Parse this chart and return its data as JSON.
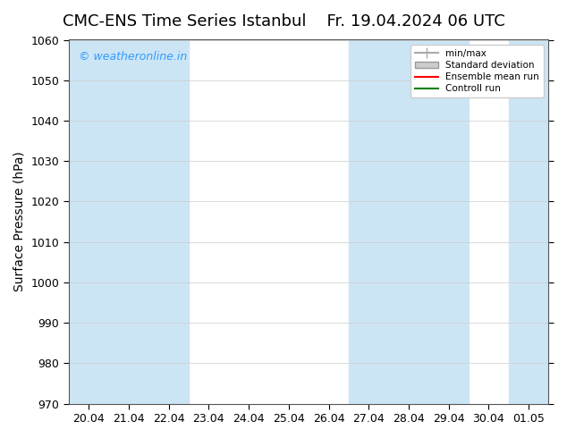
{
  "title_left": "CMC-ENS Time Series Istanbul",
  "title_right": "Fr. 19.04.2024 06 UTC",
  "ylabel": "Surface Pressure (hPa)",
  "ylim": [
    970,
    1060
  ],
  "yticks": [
    970,
    980,
    990,
    1000,
    1010,
    1020,
    1030,
    1040,
    1050,
    1060
  ],
  "xtick_labels": [
    "20.04",
    "21.04",
    "22.04",
    "23.04",
    "24.04",
    "25.04",
    "26.04",
    "27.04",
    "28.04",
    "29.04",
    "30.04",
    "01.05"
  ],
  "x_positions": [
    0,
    1,
    2,
    3,
    4,
    5,
    6,
    7,
    8,
    9,
    10,
    11
  ],
  "xlim": [
    -0.5,
    11.5
  ],
  "watermark": "© weatheronline.in",
  "watermark_color": "#3399ff",
  "background_color": "#ffffff",
  "plot_bg_color": "#ffffff",
  "shaded_bands": [
    {
      "x_start": -0.5,
      "x_end": 2.5,
      "color": "#cce5f5"
    },
    {
      "x_start": 6.5,
      "x_end": 9.5,
      "color": "#cce5f5"
    },
    {
      "x_start": 10.5,
      "x_end": 11.5,
      "color": "#cce5f5"
    }
  ],
  "legend_items": [
    {
      "label": "min/max",
      "color": "#aaaaaa",
      "style": "error"
    },
    {
      "label": "Standard deviation",
      "color": "#cccccc",
      "style": "fill"
    },
    {
      "label": "Ensemble mean run",
      "color": "#ff0000",
      "style": "line"
    },
    {
      "label": "Controll run",
      "color": "#008000",
      "style": "line"
    }
  ],
  "title_fontsize": 13,
  "axis_fontsize": 10,
  "tick_fontsize": 9
}
